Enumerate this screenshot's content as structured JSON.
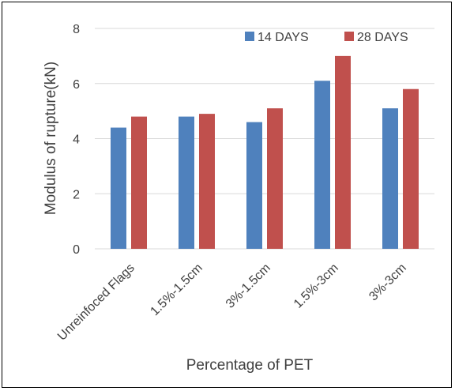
{
  "chart_data": {
    "type": "bar",
    "categories": [
      "Unreinfoced Flags",
      "1.5%-1.5cm",
      "3%-1.5cm",
      "1.5%-3cm",
      "3%-3cm"
    ],
    "series": [
      {
        "name": "14 DAYS",
        "values": [
          4.4,
          4.8,
          4.6,
          6.1,
          5.1
        ],
        "color": "#4f81bd"
      },
      {
        "name": "28 DAYS",
        "values": [
          4.8,
          4.9,
          5.1,
          7.0,
          5.8
        ],
        "color": "#c0504d"
      }
    ],
    "xlabel": "Percentage of PET",
    "ylabel": "Modulus of rupture(kN)",
    "ylim": [
      0,
      8
    ],
    "yticks": [
      "0",
      "2",
      "4",
      "6",
      "8"
    ],
    "grid": true,
    "legend_position": "top-right",
    "colors": {
      "gridline": "#d9d9d9",
      "text": "#404040",
      "frame": "#000000"
    }
  }
}
